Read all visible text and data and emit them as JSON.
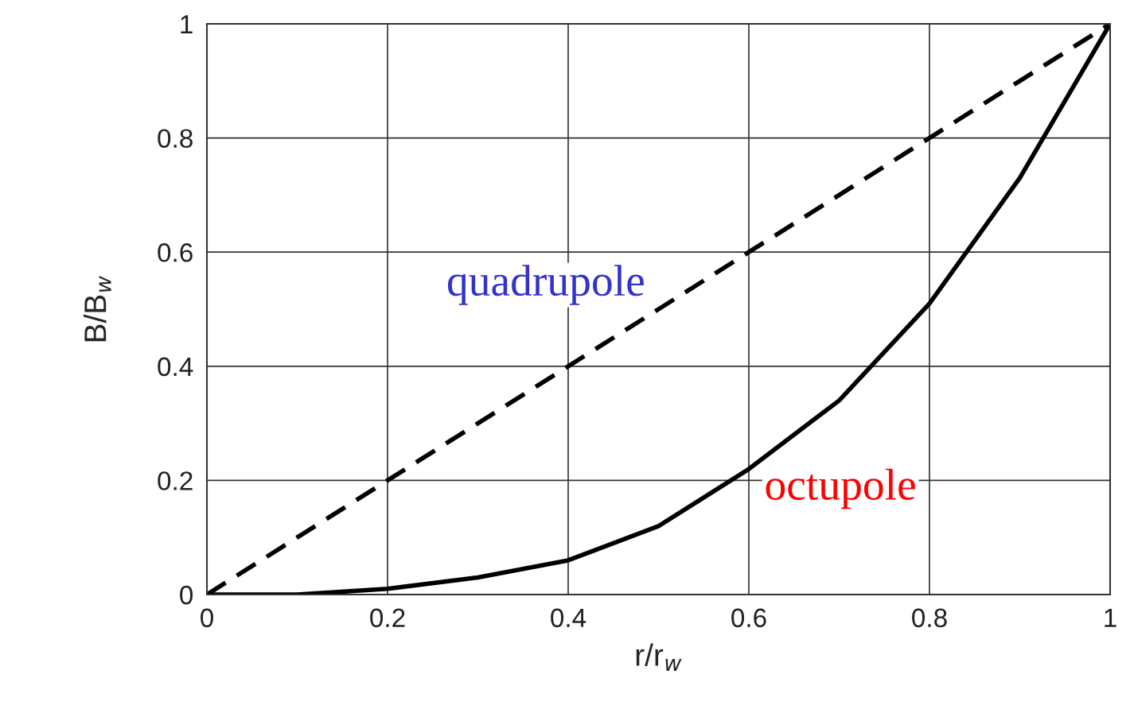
{
  "chart_data": {
    "type": "line",
    "xlabel": "r/r$_{w}$",
    "ylabel": "B/B$_{w}$",
    "x": [
      0,
      0.1,
      0.2,
      0.3,
      0.4,
      0.5,
      0.6,
      0.7,
      0.8,
      0.9,
      1
    ],
    "series": [
      {
        "name": "quadrupole",
        "color": "#000000",
        "line_style": "dashed",
        "values": [
          0,
          0.1,
          0.2,
          0.3,
          0.4,
          0.5,
          0.6,
          0.7,
          0.8,
          0.9,
          1
        ]
      },
      {
        "name": "octupole",
        "color": "#000000",
        "line_style": "solid",
        "values": [
          0,
          0,
          0.01,
          0.03,
          0.06,
          0.12,
          0.22,
          0.34,
          0.51,
          0.73,
          1
        ]
      }
    ],
    "xlim": [
      0,
      1
    ],
    "ylim": [
      0,
      1
    ],
    "xticks": [
      0,
      0.2,
      0.4,
      0.6,
      0.8,
      1
    ],
    "yticks": [
      0,
      0.2,
      0.4,
      0.6,
      0.8,
      1
    ],
    "grid": true,
    "marker": "none"
  }
}
